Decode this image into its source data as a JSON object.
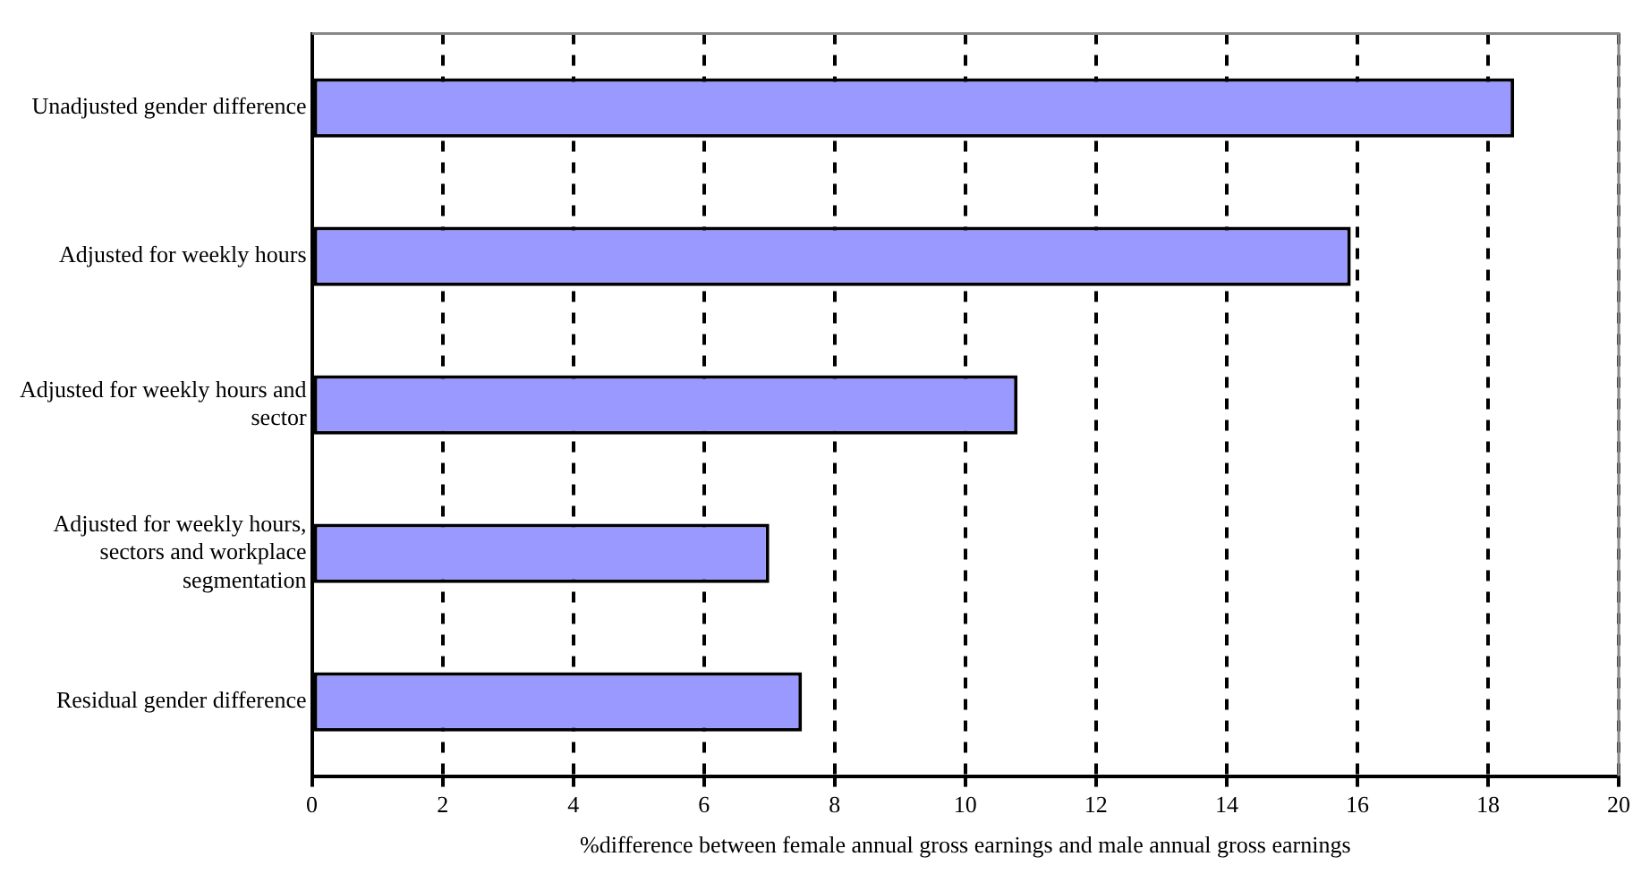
{
  "chart_data": {
    "type": "bar",
    "orientation": "horizontal",
    "categories": [
      "Unadjusted gender difference",
      "Adjusted for weekly hours",
      "Adjusted for weekly hours and sector",
      "Adjusted for weekly hours, sectors and workplace segmentation",
      "Residual gender difference"
    ],
    "values": [
      18.4,
      15.9,
      10.8,
      7.0,
      7.5
    ],
    "color": "#9999ff",
    "xlabel": "%difference between female annual gross earnings and male annual gross earnings",
    "xlim": [
      0,
      20
    ],
    "xticks": [
      0,
      2,
      4,
      6,
      8,
      10,
      12,
      14,
      16,
      18,
      20
    ],
    "grid": "x",
    "legend": false
  }
}
